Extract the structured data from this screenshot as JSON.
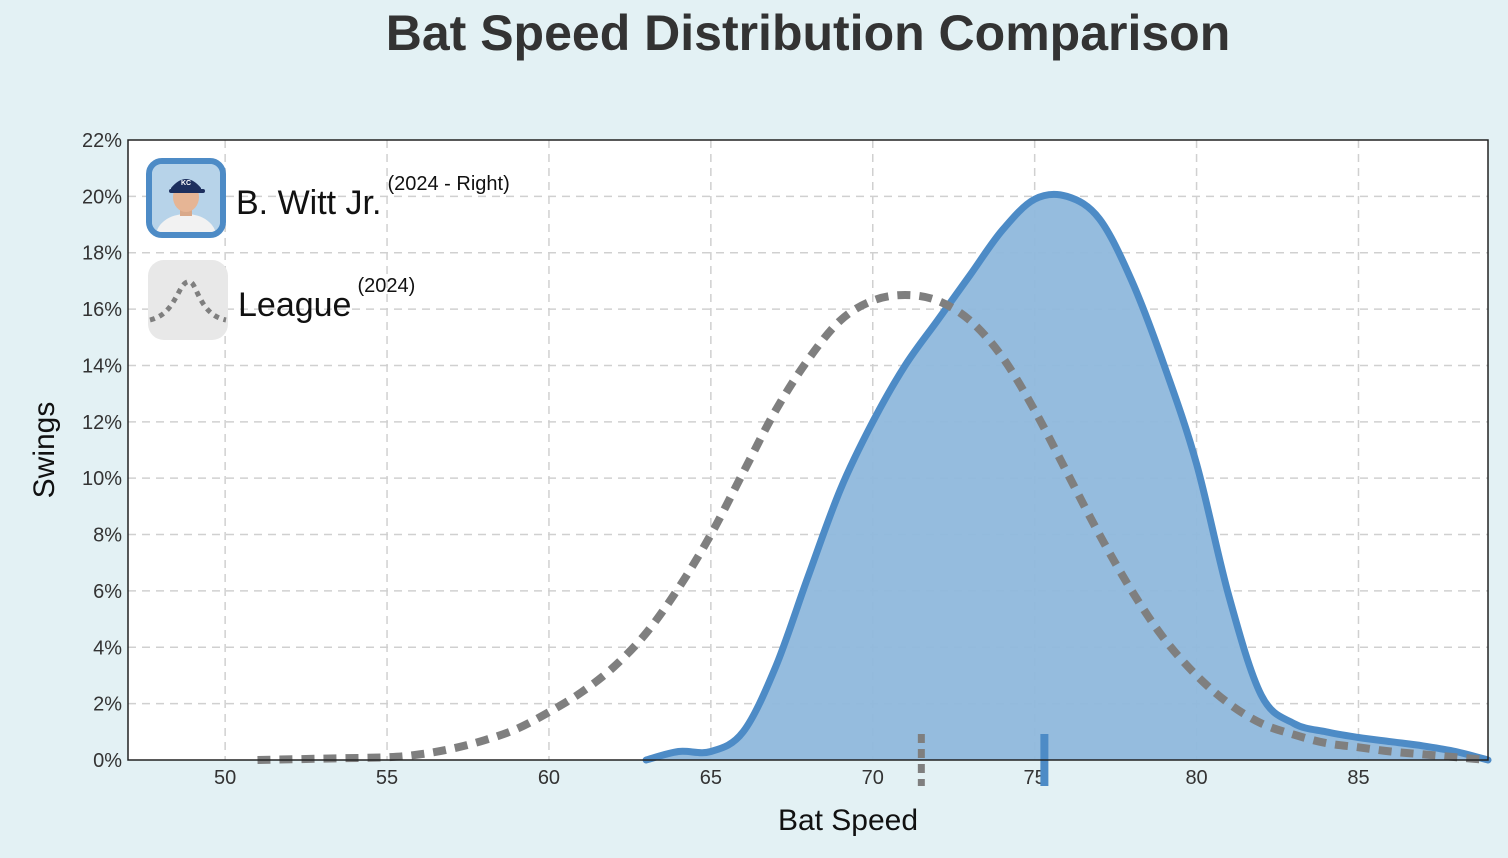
{
  "colors": {
    "background": "#e3f1f4",
    "player": "#4d8bc6",
    "player_fill": "#8fb8dc",
    "league": "#7f7f7f",
    "plot_bg": "#ffffff",
    "grid": "#d0d0d0"
  },
  "legend": {
    "player": {
      "name": "B. Witt Jr.",
      "detail": "(2024 - Right)",
      "icon": "player-headshot-icon"
    },
    "league": {
      "name": "League",
      "detail": "(2024)",
      "icon": "density-curve-icon"
    }
  },
  "chart_data": {
    "type": "area",
    "title": "Bat Speed Distribution Comparison",
    "xlabel": "Bat Speed",
    "ylabel": "Swings",
    "xlim": [
      47,
      89
    ],
    "ylim": [
      0,
      22
    ],
    "xticks": [
      "50",
      "55",
      "60",
      "65",
      "70",
      "75",
      "80",
      "85"
    ],
    "yticks": [
      "0%",
      "2%",
      "4%",
      "6%",
      "8%",
      "10%",
      "12%",
      "14%",
      "16%",
      "18%",
      "20%",
      "22%"
    ],
    "grid": true,
    "legend_position": "top-left",
    "series": [
      {
        "name": "B. Witt Jr. (2024 - Right)",
        "style": "filled-solid",
        "mean": 75.3,
        "x": [
          63,
          64,
          65,
          66,
          67,
          68,
          69,
          70,
          71,
          72,
          73,
          74,
          75,
          76,
          77,
          78,
          79,
          80,
          81,
          82,
          83,
          84,
          85,
          86,
          87,
          88,
          89
        ],
        "y": [
          0.0,
          0.3,
          0.3,
          1.0,
          3.3,
          6.5,
          9.6,
          12.0,
          14.0,
          15.6,
          17.2,
          18.8,
          19.9,
          20.0,
          19.2,
          17.0,
          14.0,
          10.5,
          5.8,
          2.3,
          1.3,
          1.0,
          0.8,
          0.65,
          0.5,
          0.3,
          0.0
        ]
      },
      {
        "name": "League (2024)",
        "style": "dotted",
        "mean": 71.5,
        "x": [
          51,
          53,
          55,
          56,
          57,
          58,
          59,
          60,
          61,
          62,
          63,
          64,
          65,
          66,
          67,
          68,
          69,
          70,
          71,
          72,
          73,
          74,
          75,
          76,
          77,
          78,
          79,
          80,
          81,
          82,
          83,
          84,
          85,
          86,
          87,
          88,
          89
        ],
        "y": [
          0.0,
          0.05,
          0.1,
          0.2,
          0.4,
          0.7,
          1.1,
          1.7,
          2.4,
          3.3,
          4.5,
          6.1,
          8.0,
          10.2,
          12.4,
          14.2,
          15.6,
          16.3,
          16.5,
          16.3,
          15.6,
          14.3,
          12.4,
          10.2,
          8.0,
          6.0,
          4.3,
          3.0,
          2.0,
          1.3,
          0.9,
          0.6,
          0.45,
          0.3,
          0.2,
          0.1,
          0.0
        ]
      }
    ]
  }
}
